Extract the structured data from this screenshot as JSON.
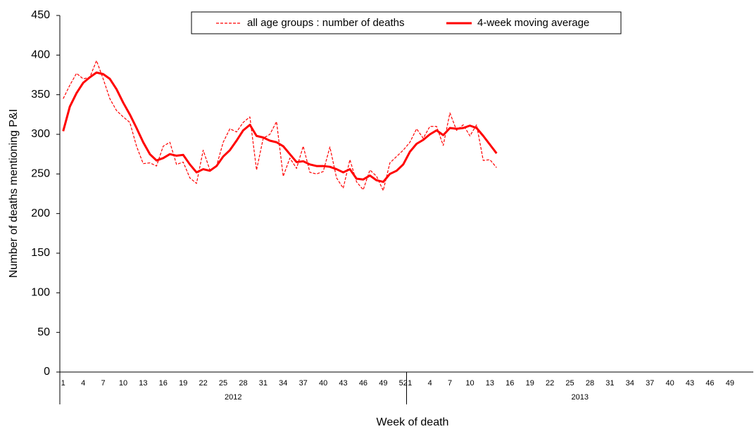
{
  "chart_data": {
    "type": "line",
    "y_label": "Number of deaths mentioning P&I",
    "x_label": "Week of death",
    "x_groups": [
      "2012",
      "2013"
    ],
    "categories": [
      "1",
      null,
      null,
      "4",
      null,
      null,
      "7",
      null,
      null,
      "10",
      null,
      null,
      "13",
      null,
      null,
      "16",
      null,
      null,
      "19",
      null,
      null,
      "22",
      null,
      null,
      "25",
      null,
      null,
      "28",
      null,
      null,
      "31",
      null,
      null,
      "34",
      null,
      null,
      "37",
      null,
      null,
      "40",
      null,
      null,
      "43",
      null,
      null,
      "46",
      null,
      null,
      "49",
      null,
      null,
      "52",
      "1",
      null,
      null,
      "4",
      null,
      null,
      "7",
      null,
      null,
      "10",
      null,
      null,
      "13",
      null,
      null,
      "16",
      null,
      null,
      "19",
      null,
      null,
      "22",
      null,
      null,
      "25",
      null,
      null,
      "28",
      null,
      null,
      "31",
      null,
      null,
      "34",
      null,
      null,
      "37",
      null,
      null,
      "40",
      null,
      null,
      "43",
      null,
      null,
      "46",
      null,
      null,
      "49",
      null,
      null,
      null
    ],
    "series": [
      {
        "name": "all age groups : number of deaths",
        "color": "#ff0000",
        "dashed": true,
        "values": [
          345,
          362,
          377,
          370,
          372,
          393,
          370,
          345,
          330,
          322,
          315,
          285,
          263,
          264,
          260,
          285,
          290,
          262,
          265,
          245,
          238,
          280,
          255,
          260,
          290,
          307,
          303,
          315,
          322,
          255,
          295,
          300,
          316,
          247,
          270,
          257,
          285,
          252,
          250,
          253,
          284,
          245,
          232,
          268,
          240,
          230,
          255,
          247,
          229,
          264,
          272,
          280,
          290,
          307,
          295,
          310,
          310,
          286,
          327,
          305,
          312,
          298,
          312,
          267,
          268,
          258,
          null,
          null,
          null,
          null,
          null,
          null,
          null,
          null,
          null,
          null,
          null,
          null,
          null,
          null,
          null,
          null,
          null,
          null,
          null,
          null,
          null,
          null,
          null,
          null,
          null,
          null,
          null,
          null,
          null,
          null,
          null,
          null,
          null,
          null,
          null,
          null,
          null,
          null
        ]
      },
      {
        "name": "4-week moving average",
        "color": "#ff0000",
        "dashed": false,
        "values": [
          304,
          335,
          352,
          365,
          372,
          378,
          376,
          370,
          357,
          340,
          325,
          308,
          290,
          275,
          267,
          270,
          275,
          273,
          274,
          262,
          252,
          256,
          254,
          260,
          272,
          280,
          292,
          305,
          312,
          298,
          296,
          292,
          290,
          285,
          275,
          265,
          266,
          262,
          260,
          260,
          259,
          256,
          252,
          256,
          244,
          243,
          248,
          242,
          240,
          250,
          254,
          262,
          278,
          288,
          293,
          300,
          305,
          299,
          308,
          307,
          308,
          311,
          308,
          298,
          287,
          276,
          null,
          null,
          null,
          null,
          null,
          null,
          null,
          null,
          null,
          null,
          null,
          null,
          null,
          null,
          null,
          null,
          null,
          null,
          null,
          null,
          null,
          null,
          null,
          null,
          null,
          null,
          null,
          null,
          null,
          null,
          null,
          null,
          null,
          null,
          null,
          null,
          null,
          null
        ]
      }
    ],
    "ylim": [
      0,
      450
    ],
    "yticks": [
      0,
      50,
      100,
      150,
      200,
      250,
      300,
      350,
      400,
      450
    ],
    "legend": "top"
  }
}
